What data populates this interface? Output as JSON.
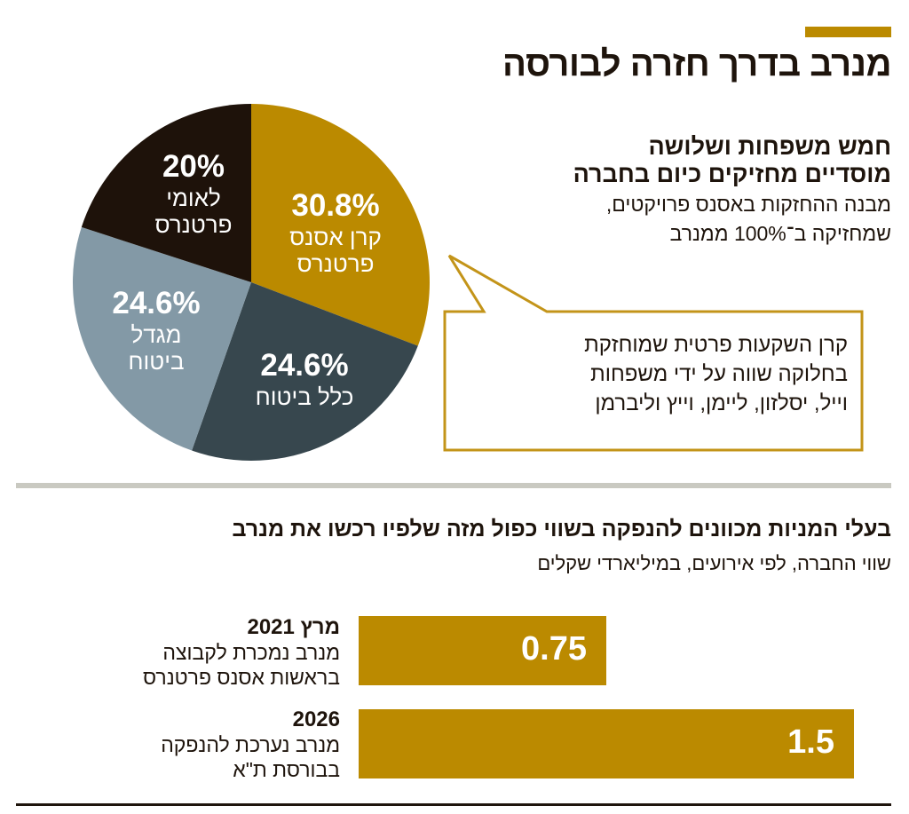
{
  "header": {
    "title": "מנרב בדרך חזרה לבורסה",
    "accent_color": "#bb8a00"
  },
  "pie_section": {
    "heading": "חמש משפחות ושלושה מוסדיים מחזיקים כיום בחברה",
    "heading_lines": [
      "חמש משפחות ושלושה",
      "מוסדיים מחזיקים כיום בחברה"
    ],
    "description_lines": [
      "מבנה ההחזקות באסנס פרויקטים,",
      "שמחזיקה ב־100% ממנרב"
    ],
    "callout_lines": [
      "קרן השקעות פרטית שמוחזקת",
      "בחלוקה שווה על ידי משפחות",
      "וייל, יסלזון, ליימן, וייץ וליברמן"
    ]
  },
  "bar_section": {
    "heading": "בעלי המניות מכוונים להנפקה בשווי כפול מזה שלפיו רכשו את מנרב",
    "subheading": "שווי החברה, לפי אירועים, במיליארדי שקלים"
  },
  "chart_data": [
    {
      "type": "pie",
      "start": "top",
      "direction": "clockwise",
      "slices": [
        {
          "name_lines": [
            "קרן אסנס",
            "פרטנרס"
          ],
          "value": 30.8,
          "label": "30.8%",
          "color": "#bb8a00"
        },
        {
          "name_lines": [
            "כלל ביטוח"
          ],
          "value": 24.6,
          "label": "24.6%",
          "color": "#37474e"
        },
        {
          "name_lines": [
            "מגדל",
            "ביטוח"
          ],
          "value": 24.6,
          "label": "24.6%",
          "color": "#8399a6"
        },
        {
          "name_lines": [
            "לאומי",
            "פרטנרס"
          ],
          "value": 20,
          "label": "20%",
          "color": "#1e120a"
        }
      ]
    },
    {
      "type": "bar",
      "orientation": "horizontal",
      "categories": [
        {
          "title": "מרץ 2021",
          "lines": [
            "מנרב נמכרת לקבוצה",
            "בראשות אסנס פרטנרס"
          ]
        },
        {
          "title": "2026",
          "lines": [
            "מנרב נערכת להנפקה",
            "בבורסת ת\"א"
          ]
        }
      ],
      "values": [
        0.75,
        1.5
      ],
      "value_labels": [
        "0.75",
        "1.5"
      ],
      "color": "#bb8a00"
    }
  ]
}
